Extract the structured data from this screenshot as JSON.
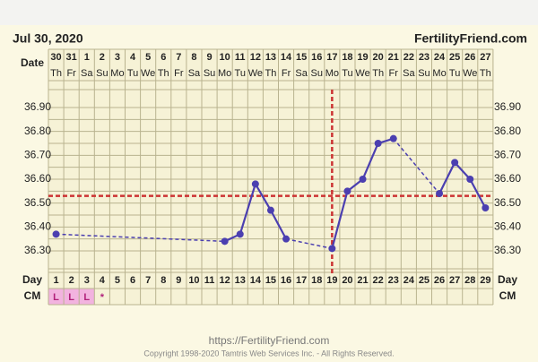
{
  "chart_data": {
    "type": "line",
    "title": "Jul 30, 2020",
    "site": "FertilityFriend.com",
    "date_label": "Date",
    "day_label": "Day",
    "cm_label": "CM",
    "dates": [
      "30",
      "31",
      "1",
      "2",
      "3",
      "4",
      "5",
      "6",
      "7",
      "8",
      "9",
      "10",
      "11",
      "12",
      "13",
      "14",
      "15",
      "16",
      "17",
      "18",
      "19",
      "20",
      "21",
      "22",
      "23",
      "24",
      "25",
      "26",
      "27"
    ],
    "weekdays": [
      "Th",
      "Fr",
      "Sa",
      "Su",
      "Mo",
      "Tu",
      "We",
      "Th",
      "Fr",
      "Sa",
      "Su",
      "Mo",
      "Tu",
      "We",
      "Th",
      "Fr",
      "Sa",
      "Su",
      "Mo",
      "Tu",
      "We",
      "Th",
      "Fr",
      "Sa",
      "Su",
      "Mo",
      "Tu",
      "We",
      "Th"
    ],
    "x": [
      1,
      2,
      3,
      4,
      5,
      6,
      7,
      8,
      9,
      10,
      11,
      12,
      13,
      14,
      15,
      16,
      17,
      18,
      19,
      20,
      21,
      22,
      23,
      24,
      25,
      26,
      27,
      28,
      29
    ],
    "cm": [
      "L",
      "L",
      "L",
      "*",
      null,
      null,
      null,
      null,
      null,
      null,
      null,
      null,
      null,
      null,
      null,
      null,
      null,
      null,
      null,
      null,
      null,
      null,
      null,
      null,
      null,
      null,
      null,
      null,
      null
    ],
    "series": [
      {
        "color": "#4b3fb0",
        "values": [
          36.37,
          null,
          null,
          null,
          null,
          null,
          null,
          null,
          null,
          null,
          null,
          36.34,
          36.37,
          36.58,
          36.47,
          36.35,
          null,
          null,
          36.31,
          36.55,
          36.6,
          36.75,
          36.77,
          null,
          null,
          36.54,
          36.67,
          36.6,
          36.48
        ]
      }
    ],
    "coverline": 36.53,
    "ovulation_x": 19,
    "reference_color": "#cc3333",
    "ylim": [
      36.225,
      36.975
    ],
    "yticks": [
      {
        "value": 36.3,
        "label": "36.30"
      },
      {
        "value": 36.4,
        "label": "36.40"
      },
      {
        "value": 36.5,
        "label": "36.50"
      },
      {
        "value": 36.6,
        "label": "36.60"
      },
      {
        "value": 36.7,
        "label": "36.70"
      },
      {
        "value": 36.8,
        "label": "36.80"
      },
      {
        "value": 36.9,
        "label": "36.90"
      }
    ],
    "grid": true
  },
  "footer": {
    "url": "https://FertilityFriend.com",
    "copyright": "Copyright 1998-2020 Tamtris Web Services Inc. - All Rights Reserved."
  }
}
